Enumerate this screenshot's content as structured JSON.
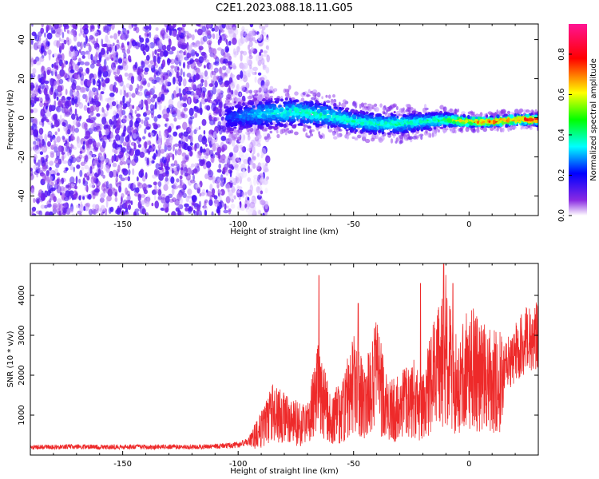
{
  "figure": {
    "title": "C2E1.2023.088.18.11.G05"
  },
  "colors": {
    "snr_line": "#ee2a2a",
    "colorbar_stops": [
      "#ffffff",
      "#8a2be2",
      "#0000ff",
      "#00ffff",
      "#00ff00",
      "#ffff00",
      "#ff0000",
      "#ff1493"
    ]
  },
  "chart_data": [
    {
      "type": "heatmap",
      "title": "",
      "xlabel": "Height of straight line (km)",
      "ylabel": "Frequency (Hz)",
      "xlim": [
        -190,
        30
      ],
      "ylim": [
        -50,
        48
      ],
      "xticks": [
        -150,
        -100,
        -50,
        0
      ],
      "yticks": [
        -40,
        -20,
        0,
        20,
        40
      ],
      "grid": false,
      "colorbar": {
        "label": "Normalized spectral amplitude",
        "range": [
          0.0,
          0.95
        ],
        "ticks": [
          0.0,
          0.2,
          0.4,
          0.6,
          0.8
        ]
      },
      "noise_region": {
        "x_range": [
          -190,
          -95
        ],
        "typical_amplitude": 0.1
      },
      "signal_band": {
        "x": [
          -105,
          -90,
          -75,
          -60,
          -50,
          -40,
          -30,
          -20,
          -10,
          0,
          10,
          20,
          30
        ],
        "center_frequency": [
          0,
          2,
          3,
          1,
          -2,
          -3,
          -3,
          -2,
          -1,
          -2,
          -2,
          -1,
          -1
        ],
        "bandwidth": [
          8,
          8,
          8,
          7,
          6,
          6,
          6,
          5,
          4,
          3,
          3,
          3,
          3
        ],
        "peak_amplitude": [
          0.25,
          0.4,
          0.45,
          0.45,
          0.45,
          0.45,
          0.45,
          0.45,
          0.55,
          0.8,
          0.85,
          0.9,
          0.95
        ]
      }
    },
    {
      "type": "line",
      "title": "",
      "xlabel": "Height of straight line (km)",
      "ylabel": "SNR (10 * v/v)",
      "xlim": [
        -190,
        30
      ],
      "ylim": [
        0,
        4800
      ],
      "xticks": [
        -150,
        -100,
        -50,
        0
      ],
      "yticks": [
        1000,
        2000,
        3000,
        4000
      ],
      "grid": false,
      "series": [
        {
          "x": [
            -190,
            -180,
            -170,
            -160,
            -150,
            -140,
            -130,
            -120,
            -110,
            -100,
            -95,
            -90,
            -85,
            -80,
            -75,
            -70,
            -65,
            -60,
            -55,
            -50,
            -45,
            -40,
            -35,
            -30,
            -25,
            -20,
            -15,
            -10,
            -5,
            0,
            5,
            10,
            15,
            20,
            25,
            30
          ],
          "values": [
            200,
            200,
            210,
            200,
            210,
            200,
            210,
            200,
            220,
            250,
            350,
            700,
            1200,
            1000,
            900,
            800,
            2000,
            1000,
            1200,
            2000,
            1500,
            2200,
            1200,
            1300,
            1600,
            1400,
            2200,
            3000,
            1800,
            2500,
            2200,
            2000,
            2100,
            2600,
            2900,
            3000
          ],
          "peaks": [
            {
              "x": -65,
              "y": 4500
            },
            {
              "x": -48,
              "y": 3800
            },
            {
              "x": -21,
              "y": 4300
            },
            {
              "x": -11,
              "y": 4800
            },
            {
              "x": -7,
              "y": 4300
            }
          ]
        }
      ]
    }
  ]
}
